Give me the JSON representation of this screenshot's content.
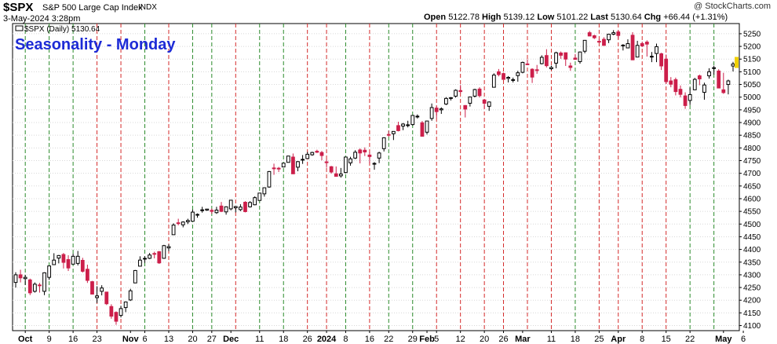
{
  "header": {
    "symbol": "$SPX",
    "name": "S&P 500 Large Cap Index",
    "exchange": "INDX",
    "date": "3-May-2024 3:28pm",
    "brand": "@ StockCharts.com",
    "open_label": "Open",
    "open": "5122.78",
    "high_label": "High",
    "high": "5139.12",
    "low_label": "Low",
    "low": "5101.22",
    "last_label": "Last",
    "last": "5130.64",
    "chg_label": "Chg",
    "chg": "+66.44 (+1.31%)"
  },
  "legend": {
    "text": "$SPX (Daily) 5130.64"
  },
  "annotation": {
    "title": "Seasonality - Monday"
  },
  "colors": {
    "up": "#ffffff",
    "down": "#cc1f4a",
    "outline": "#000000",
    "green_line": "#2a8a2a",
    "red_line": "#d42a2a",
    "grid": "#d8d8d8",
    "title": "#1d2bd6",
    "marker": "#f0d000"
  },
  "chart_data": {
    "type": "candlestick",
    "title": "Seasonality - Monday",
    "ylim": [
      4080,
      5290
    ],
    "y_ticks": [
      4100,
      4150,
      4200,
      4250,
      4300,
      4350,
      4400,
      4450,
      4500,
      4550,
      4600,
      4650,
      4700,
      4750,
      4800,
      4850,
      4900,
      4950,
      5000,
      5050,
      5100,
      5150,
      5200,
      5250
    ],
    "x_labels": [
      {
        "label": "Oct",
        "date": "2023-10-02"
      },
      {
        "label": "9",
        "date": "2023-10-09"
      },
      {
        "label": "16",
        "date": "2023-10-16"
      },
      {
        "label": "23",
        "date": "2023-10-23"
      },
      {
        "label": "Nov",
        "date": "2023-11-01"
      },
      {
        "label": "6",
        "date": "2023-11-06"
      },
      {
        "label": "13",
        "date": "2023-11-13"
      },
      {
        "label": "20",
        "date": "2023-11-20"
      },
      {
        "label": "27",
        "date": "2023-11-27"
      },
      {
        "label": "Dec",
        "date": "2023-12-01"
      },
      {
        "label": "11",
        "date": "2023-12-11"
      },
      {
        "label": "18",
        "date": "2023-12-18"
      },
      {
        "label": "26",
        "date": "2023-12-26"
      },
      {
        "label": "2024",
        "date": "2024-01-02"
      },
      {
        "label": "8",
        "date": "2024-01-08"
      },
      {
        "label": "16",
        "date": "2024-01-16"
      },
      {
        "label": "22",
        "date": "2024-01-22"
      },
      {
        "label": "29",
        "date": "2024-01-29"
      },
      {
        "label": "Feb",
        "date": "2024-02-01"
      },
      {
        "label": "5",
        "date": "2024-02-05"
      },
      {
        "label": "12",
        "date": "2024-02-12"
      },
      {
        "label": "20",
        "date": "2024-02-20"
      },
      {
        "label": "26",
        "date": "2024-02-26"
      },
      {
        "label": "Mar",
        "date": "2024-03-01"
      },
      {
        "label": "11",
        "date": "2024-03-11"
      },
      {
        "label": "18",
        "date": "2024-03-18"
      },
      {
        "label": "25",
        "date": "2024-03-25"
      },
      {
        "label": "Apr",
        "date": "2024-04-01"
      },
      {
        "label": "8",
        "date": "2024-04-08"
      },
      {
        "label": "15",
        "date": "2024-04-15"
      },
      {
        "label": "22",
        "date": "2024-04-22"
      },
      {
        "label": "May",
        "date": "2024-05-01"
      },
      {
        "label": "6",
        "date": "2024-05-06"
      }
    ],
    "monday_lines": [
      {
        "date": "2023-10-02",
        "color": "green"
      },
      {
        "date": "2023-10-09",
        "color": "green"
      },
      {
        "date": "2023-10-16",
        "color": "green"
      },
      {
        "date": "2023-10-23",
        "color": "red"
      },
      {
        "date": "2023-10-30",
        "color": "red"
      },
      {
        "date": "2023-11-06",
        "color": "green"
      },
      {
        "date": "2023-11-13",
        "color": "red"
      },
      {
        "date": "2023-11-20",
        "color": "green"
      },
      {
        "date": "2023-11-27",
        "color": "green"
      },
      {
        "date": "2023-12-04",
        "color": "red"
      },
      {
        "date": "2023-12-11",
        "color": "green"
      },
      {
        "date": "2023-12-18",
        "color": "green"
      },
      {
        "date": "2023-12-25",
        "color": "red"
      },
      {
        "date": "2024-01-01",
        "color": "red"
      },
      {
        "date": "2024-01-08",
        "color": "green"
      },
      {
        "date": "2024-01-15",
        "color": "red"
      },
      {
        "date": "2024-01-22",
        "color": "green"
      },
      {
        "date": "2024-01-29",
        "color": "green"
      },
      {
        "date": "2024-02-05",
        "color": "red"
      },
      {
        "date": "2024-02-12",
        "color": "red"
      },
      {
        "date": "2024-02-19",
        "color": "red"
      },
      {
        "date": "2024-02-26",
        "color": "red"
      },
      {
        "date": "2024-03-04",
        "color": "red"
      },
      {
        "date": "2024-03-11",
        "color": "red"
      },
      {
        "date": "2024-03-18",
        "color": "green"
      },
      {
        "date": "2024-03-25",
        "color": "red"
      },
      {
        "date": "2024-04-01",
        "color": "red"
      },
      {
        "date": "2024-04-08",
        "color": "red"
      },
      {
        "date": "2024-04-15",
        "color": "red"
      },
      {
        "date": "2024-04-22",
        "color": "green"
      },
      {
        "date": "2024-04-29",
        "color": "green"
      }
    ],
    "ohlc": [
      [
        "2023-09-28",
        4270,
        4310,
        4250,
        4300
      ],
      [
        "2023-09-29",
        4300,
        4320,
        4270,
        4288
      ],
      [
        "2023-10-02",
        4285,
        4300,
        4260,
        4290
      ],
      [
        "2023-10-03",
        4280,
        4285,
        4220,
        4229
      ],
      [
        "2023-10-04",
        4235,
        4270,
        4230,
        4263
      ],
      [
        "2023-10-05",
        4260,
        4268,
        4230,
        4258
      ],
      [
        "2023-10-06",
        4235,
        4310,
        4220,
        4308
      ],
      [
        "2023-10-09",
        4290,
        4336,
        4280,
        4335
      ],
      [
        "2023-10-10",
        4340,
        4385,
        4340,
        4358
      ],
      [
        "2023-10-11",
        4366,
        4378,
        4345,
        4376
      ],
      [
        "2023-10-12",
        4380,
        4386,
        4325,
        4349
      ],
      [
        "2023-10-13",
        4360,
        4377,
        4315,
        4327
      ],
      [
        "2023-10-16",
        4342,
        4383,
        4342,
        4373
      ],
      [
        "2023-10-17",
        4345,
        4394,
        4337,
        4373
      ],
      [
        "2023-10-18",
        4357,
        4367,
        4309,
        4314
      ],
      [
        "2023-10-19",
        4322,
        4340,
        4268,
        4278
      ],
      [
        "2023-10-20",
        4273,
        4276,
        4223,
        4224
      ],
      [
        "2023-10-23",
        4210,
        4255,
        4189,
        4217
      ],
      [
        "2023-10-24",
        4235,
        4259,
        4219,
        4248
      ],
      [
        "2023-10-25",
        4232,
        4233,
        4181,
        4186
      ],
      [
        "2023-10-26",
        4175,
        4184,
        4127,
        4137
      ],
      [
        "2023-10-27",
        4152,
        4156,
        4103,
        4117
      ],
      [
        "2023-10-30",
        4140,
        4178,
        4132,
        4167
      ],
      [
        "2023-10-31",
        4171,
        4195,
        4153,
        4193
      ],
      [
        "2023-11-01",
        4201,
        4245,
        4197,
        4237
      ],
      [
        "2023-11-02",
        4268,
        4319,
        4268,
        4317
      ],
      [
        "2023-11-03",
        4334,
        4373,
        4334,
        4358
      ],
      [
        "2023-11-06",
        4364,
        4373,
        4347,
        4365
      ],
      [
        "2023-11-07",
        4365,
        4386,
        4362,
        4378
      ],
      [
        "2023-11-08",
        4384,
        4391,
        4365,
        4383
      ],
      [
        "2023-11-09",
        4391,
        4394,
        4343,
        4347
      ],
      [
        "2023-11-10",
        4365,
        4418,
        4363,
        4415
      ],
      [
        "2023-11-13",
        4406,
        4421,
        4393,
        4411
      ],
      [
        "2023-11-14",
        4458,
        4503,
        4458,
        4496
      ],
      [
        "2023-11-15",
        4505,
        4521,
        4495,
        4503
      ],
      [
        "2023-11-16",
        4497,
        4511,
        4487,
        4508
      ],
      [
        "2023-11-17",
        4509,
        4521,
        4500,
        4514
      ],
      [
        "2023-11-20",
        4511,
        4557,
        4511,
        4547
      ],
      [
        "2023-11-21",
        4538,
        4542,
        4525,
        4538
      ],
      [
        "2023-11-22",
        4553,
        4568,
        4545,
        4556
      ],
      [
        "2023-11-24",
        4555,
        4560,
        4552,
        4559
      ],
      [
        "2023-11-27",
        4554,
        4561,
        4540,
        4550
      ],
      [
        "2023-11-28",
        4545,
        4568,
        4540,
        4555
      ],
      [
        "2023-11-29",
        4571,
        4587,
        4547,
        4550
      ],
      [
        "2023-11-30",
        4548,
        4570,
        4537,
        4568
      ],
      [
        "2023-12-01",
        4560,
        4595,
        4554,
        4594
      ],
      [
        "2023-12-04",
        4564,
        4572,
        4546,
        4569
      ],
      [
        "2023-12-05",
        4557,
        4578,
        4551,
        4567
      ],
      [
        "2023-12-06",
        4586,
        4590,
        4546,
        4549
      ],
      [
        "2023-12-07",
        4568,
        4590,
        4565,
        4585
      ],
      [
        "2023-12-08",
        4576,
        4609,
        4574,
        4604
      ],
      [
        "2023-12-11",
        4593,
        4623,
        4593,
        4622
      ],
      [
        "2023-12-12",
        4619,
        4644,
        4608,
        4643
      ],
      [
        "2023-12-13",
        4646,
        4709,
        4643,
        4707
      ],
      [
        "2023-12-14",
        4721,
        4738,
        4694,
        4719
      ],
      [
        "2023-12-15",
        4720,
        4725,
        4705,
        4719
      ],
      [
        "2023-12-18",
        4725,
        4740,
        4724,
        4740
      ],
      [
        "2023-12-19",
        4743,
        4768,
        4743,
        4768
      ],
      [
        "2023-12-20",
        4764,
        4778,
        4697,
        4698
      ],
      [
        "2023-12-21",
        4724,
        4748,
        4708,
        4746
      ],
      [
        "2023-12-22",
        4753,
        4772,
        4737,
        4755
      ],
      [
        "2023-12-26",
        4758,
        4784,
        4758,
        4775
      ],
      [
        "2023-12-27",
        4773,
        4785,
        4769,
        4782
      ],
      [
        "2023-12-28",
        4787,
        4793,
        4780,
        4783
      ],
      [
        "2023-12-29",
        4782,
        4788,
        4751,
        4770
      ],
      [
        "2024-01-02",
        4745,
        4755,
        4722,
        4743
      ],
      [
        "2024-01-03",
        4726,
        4729,
        4699,
        4705
      ],
      [
        "2024-01-04",
        4698,
        4727,
        4687,
        4688
      ],
      [
        "2024-01-05",
        4690,
        4721,
        4683,
        4697
      ],
      [
        "2024-01-08",
        4703,
        4764,
        4700,
        4764
      ],
      [
        "2024-01-09",
        4741,
        4765,
        4730,
        4757
      ],
      [
        "2024-01-10",
        4760,
        4791,
        4756,
        4783
      ],
      [
        "2024-01-11",
        4792,
        4798,
        4739,
        4780
      ],
      [
        "2024-01-12",
        4791,
        4802,
        4768,
        4784
      ],
      [
        "2024-01-16",
        4772,
        4782,
        4740,
        4766
      ],
      [
        "2024-01-17",
        4739,
        4744,
        4714,
        4739
      ],
      [
        "2024-01-18",
        4760,
        4785,
        4740,
        4780
      ],
      [
        "2024-01-19",
        4797,
        4842,
        4786,
        4840
      ],
      [
        "2024-01-22",
        4853,
        4868,
        4844,
        4850
      ],
      [
        "2024-01-23",
        4856,
        4866,
        4831,
        4865
      ],
      [
        "2024-01-24",
        4888,
        4903,
        4865,
        4868
      ],
      [
        "2024-01-25",
        4886,
        4898,
        4870,
        4894
      ],
      [
        "2024-01-26",
        4888,
        4907,
        4881,
        4891
      ],
      [
        "2024-01-29",
        4892,
        4928,
        4888,
        4928
      ],
      [
        "2024-01-30",
        4925,
        4932,
        4916,
        4925
      ],
      [
        "2024-01-31",
        4899,
        4906,
        4845,
        4846
      ],
      [
        "2024-02-01",
        4862,
        4906,
        4853,
        4906
      ],
      [
        "2024-02-02",
        4916,
        4975,
        4907,
        4959
      ],
      [
        "2024-02-05",
        4957,
        4966,
        4918,
        4943
      ],
      [
        "2024-02-06",
        4950,
        4960,
        4934,
        4954
      ],
      [
        "2024-02-07",
        4973,
        5000,
        4969,
        4995
      ],
      [
        "2024-02-08",
        4995,
        5000,
        4987,
        4998
      ],
      [
        "2024-02-09",
        5004,
        5031,
        4998,
        5027
      ],
      [
        "2024-02-12",
        5026,
        5048,
        5015,
        5022
      ],
      [
        "2024-02-13",
        4967,
        4969,
        4920,
        4953
      ],
      [
        "2024-02-14",
        4976,
        5002,
        4963,
        5001
      ],
      [
        "2024-02-15",
        5004,
        5033,
        4999,
        5030
      ],
      [
        "2024-02-16",
        5032,
        5039,
        4999,
        5006
      ],
      [
        "2024-02-20",
        4989,
        4993,
        4955,
        4976
      ],
      [
        "2024-02-21",
        4964,
        4983,
        4946,
        4981
      ],
      [
        "2024-02-22",
        5039,
        5094,
        5038,
        5087
      ],
      [
        "2024-02-23",
        5100,
        5111,
        5082,
        5089
      ],
      [
        "2024-02-26",
        5093,
        5097,
        5068,
        5070
      ],
      [
        "2024-02-27",
        5074,
        5083,
        5058,
        5078
      ],
      [
        "2024-02-28",
        5068,
        5077,
        5058,
        5069
      ],
      [
        "2024-02-29",
        5085,
        5104,
        5061,
        5096
      ],
      [
        "2024-03-01",
        5098,
        5140,
        5094,
        5137
      ],
      [
        "2024-03-04",
        5131,
        5149,
        5127,
        5130
      ],
      [
        "2024-03-05",
        5110,
        5114,
        5056,
        5079
      ],
      [
        "2024-03-06",
        5108,
        5127,
        5092,
        5105
      ],
      [
        "2024-03-07",
        5132,
        5165,
        5129,
        5157
      ],
      [
        "2024-03-08",
        5164,
        5189,
        5117,
        5124
      ],
      [
        "2024-03-11",
        5112,
        5124,
        5107,
        5117
      ],
      [
        "2024-03-12",
        5134,
        5179,
        5114,
        5175
      ],
      [
        "2024-03-13",
        5174,
        5180,
        5151,
        5165
      ],
      [
        "2024-03-14",
        5175,
        5176,
        5123,
        5150
      ],
      [
        "2024-03-15",
        5123,
        5136,
        5104,
        5117
      ],
      [
        "2024-03-18",
        5154,
        5170,
        5147,
        5149
      ],
      [
        "2024-03-19",
        5140,
        5180,
        5132,
        5178
      ],
      [
        "2024-03-20",
        5181,
        5225,
        5173,
        5224
      ],
      [
        "2024-03-21",
        5254,
        5261,
        5240,
        5241
      ],
      [
        "2024-03-22",
        5242,
        5246,
        5229,
        5234
      ],
      [
        "2024-03-25",
        5220,
        5229,
        5214,
        5218
      ],
      [
        "2024-03-26",
        5228,
        5236,
        5203,
        5204
      ],
      [
        "2024-03-27",
        5226,
        5249,
        5213,
        5248
      ],
      [
        "2024-03-28",
        5248,
        5264,
        5244,
        5254
      ],
      [
        "2024-04-01",
        5257,
        5263,
        5229,
        5243
      ],
      [
        "2024-04-02",
        5204,
        5209,
        5184,
        5205
      ],
      [
        "2024-04-03",
        5194,
        5228,
        5194,
        5211
      ],
      [
        "2024-04-04",
        5244,
        5256,
        5146,
        5147
      ],
      [
        "2024-04-05",
        5158,
        5222,
        5157,
        5204
      ],
      [
        "2024-04-08",
        5211,
        5219,
        5197,
        5202
      ],
      [
        "2024-04-09",
        5217,
        5224,
        5160,
        5209
      ],
      [
        "2024-04-10",
        5160,
        5178,
        5138,
        5161
      ],
      [
        "2024-04-11",
        5172,
        5211,
        5138,
        5199
      ],
      [
        "2024-04-12",
        5171,
        5175,
        5107,
        5123
      ],
      [
        "2024-04-15",
        5150,
        5168,
        5052,
        5061
      ],
      [
        "2024-04-16",
        5064,
        5079,
        5039,
        5051
      ],
      [
        "2024-04-17",
        5069,
        5077,
        5007,
        5022
      ],
      [
        "2024-04-18",
        5031,
        5046,
        4999,
        5011
      ],
      [
        "2024-04-19",
        5005,
        5019,
        4954,
        4967
      ],
      [
        "2024-04-22",
        4987,
        5038,
        4969,
        5010
      ],
      [
        "2024-04-23",
        5029,
        5076,
        5028,
        5070
      ],
      [
        "2024-04-24",
        5084,
        5089,
        5047,
        5072
      ],
      [
        "2024-04-25",
        5019,
        5057,
        4990,
        5048
      ],
      [
        "2024-04-26",
        5084,
        5114,
        5073,
        5100
      ],
      [
        "2024-04-29",
        5114,
        5124,
        5089,
        5116
      ],
      [
        "2024-04-30",
        5103,
        5110,
        5035,
        5036
      ],
      [
        "2024-05-01",
        5029,
        5096,
        5013,
        5018
      ],
      [
        "2024-05-02",
        5050,
        5069,
        5011,
        5064
      ],
      [
        "2024-05-03",
        5122.78,
        5139.12,
        5101.22,
        5130.64
      ]
    ]
  }
}
